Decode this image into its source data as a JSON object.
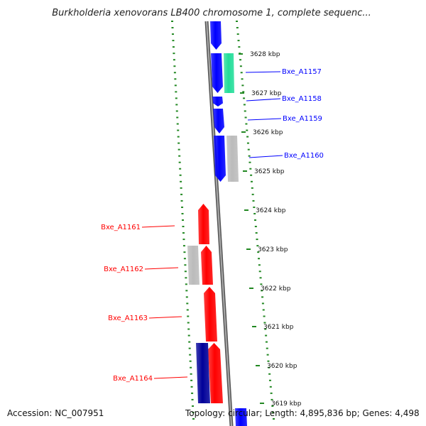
{
  "title": "Burkholderia xenovorans LB400 chromosome 1, complete sequenc...",
  "footer": {
    "accession": "Accession: NC_007951",
    "topology": "Topology: circular; Length: 4,895,836 bp; Genes: 4,498"
  },
  "colors": {
    "plus_strand": "#0000ff",
    "minus_strand": "#ff0000",
    "teal_feature": "#22dd99",
    "gray_feature": "#bbbbbb",
    "navy_feature": "#000099",
    "axis_gray": "#888888",
    "tick_green": "#228822"
  },
  "ruler": {
    "ticks": [
      {
        "label": "3628 kbp"
      },
      {
        "label": "3627 kbp"
      },
      {
        "label": "3626 kbp"
      },
      {
        "label": "3625 kbp"
      },
      {
        "label": "3624 kbp"
      },
      {
        "label": "3623 kbp"
      },
      {
        "label": "3622 kbp"
      },
      {
        "label": "3621 kbp"
      },
      {
        "label": "3620 kbp"
      },
      {
        "label": "3619 kbp"
      }
    ]
  },
  "genes": [
    {
      "name": "Bxe_A1157",
      "strand": "+"
    },
    {
      "name": "Bxe_A1158",
      "strand": "+"
    },
    {
      "name": "Bxe_A1159",
      "strand": "+"
    },
    {
      "name": "Bxe_A1160",
      "strand": "+"
    },
    {
      "name": "Bxe_A1161",
      "strand": "-"
    },
    {
      "name": "Bxe_A1162",
      "strand": "-"
    },
    {
      "name": "Bxe_A1163",
      "strand": "-"
    },
    {
      "name": "Bxe_A1164",
      "strand": "-"
    }
  ]
}
